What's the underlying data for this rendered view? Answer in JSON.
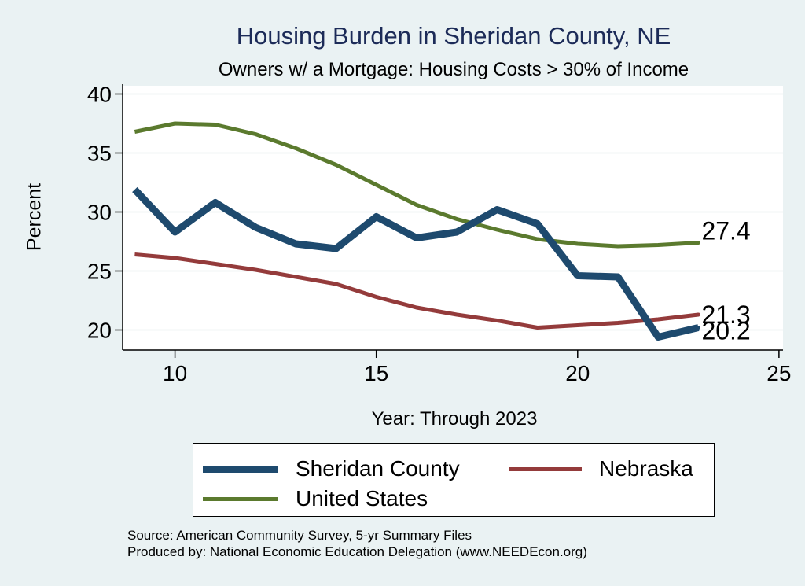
{
  "chart_data": {
    "type": "line",
    "title": "Housing Burden in Sheridan County, NE",
    "subtitle": "Owners w/ a Mortgage: Housing Costs > 30% of Income",
    "xlabel": "Year: Through 2023",
    "ylabel": "Percent",
    "xlim": [
      8.7,
      25.1
    ],
    "ylim": [
      18.3,
      40.7
    ],
    "x_ticks": [
      10,
      15,
      20,
      25
    ],
    "y_ticks": [
      20,
      25,
      30,
      35,
      40
    ],
    "grid": true,
    "x": [
      9,
      10,
      11,
      12,
      13,
      14,
      15,
      16,
      17,
      18,
      19,
      20,
      21,
      22,
      23
    ],
    "series": [
      {
        "name": "Sheridan County",
        "color": "#1e4a6e",
        "width": 9,
        "values": [
          31.9,
          28.3,
          30.8,
          28.7,
          27.3,
          26.9,
          29.6,
          27.8,
          28.3,
          30.2,
          29.0,
          24.6,
          24.5,
          19.4,
          20.2
        ],
        "end_label": "20.2"
      },
      {
        "name": "Nebraska",
        "color": "#943b3b",
        "width": 5,
        "values": [
          26.4,
          26.1,
          25.6,
          25.1,
          24.5,
          23.9,
          22.8,
          21.9,
          21.3,
          20.8,
          20.2,
          20.4,
          20.6,
          20.9,
          21.3
        ],
        "end_label": "21.3"
      },
      {
        "name": "United States",
        "color": "#5b7a2e",
        "width": 5,
        "values": [
          36.8,
          37.5,
          37.4,
          36.6,
          35.4,
          34.0,
          32.3,
          30.6,
          29.4,
          28.5,
          27.7,
          27.3,
          27.1,
          27.2,
          27.4
        ],
        "end_label": "27.4"
      }
    ]
  },
  "legend": {
    "items": [
      "Sheridan County",
      "Nebraska",
      "United States"
    ]
  },
  "footnote": {
    "source": "Source: American Community Survey, 5-yr Summary Files",
    "produced": "Produced by: National Economic Education Delegation (www.NEEDEcon.org)"
  }
}
